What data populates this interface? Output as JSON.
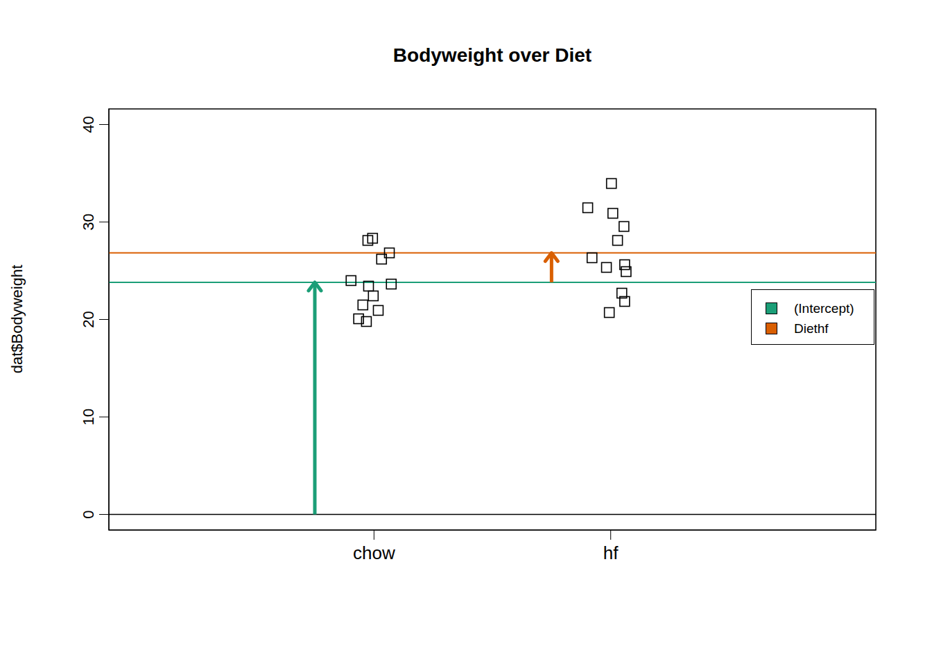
{
  "chart_data": {
    "type": "scatter",
    "title": "Bodyweight over Diet",
    "y_label": "dat$Bodyweight",
    "xlim": [
      -0.12,
      3.12
    ],
    "xticks": [
      {
        "value": 1,
        "label": "chow"
      },
      {
        "value": 2,
        "label": "hf"
      }
    ],
    "ylim": [
      -1.6,
      41.6
    ],
    "yticks": [
      0,
      10,
      20,
      30,
      40
    ],
    "x": [
      0.903,
      0.974,
      0.994,
      1.065,
      1.032,
      0.977,
      1.073,
      0.997,
      0.953,
      1.018,
      0.935,
      0.968,
      2.003,
      1.903,
      2.009,
      2.056,
      2.029,
      1.921,
      1.982,
      2.059,
      2.065,
      2.047,
      2.059,
      1.994
    ],
    "values": [
      23.99,
      28.11,
      28.33,
      26.83,
      26.19,
      23.42,
      23.63,
      22.42,
      21.49,
      20.93,
      20.07,
      19.79,
      33.95,
      31.46,
      30.89,
      29.54,
      28.11,
      26.33,
      25.34,
      25.62,
      24.91,
      22.7,
      21.85,
      20.71
    ],
    "marker": "square",
    "color": "#000000",
    "hline": 0,
    "series": [
      {
        "name": "(Intercept)",
        "type": "arrow",
        "color": "#1b9e77",
        "x": [
          0.75
        ],
        "values": [
          23.81
        ]
      },
      {
        "name": "Diethf",
        "type": "arrow",
        "color": "#d95f02",
        "x": [
          1.75
        ],
        "values": [
          3.02
        ]
      }
    ],
    "legend": "right",
    "grid": false
  }
}
